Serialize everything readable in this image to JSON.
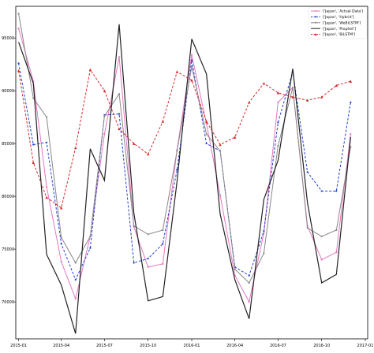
{
  "chart_data": {
    "type": "line",
    "title": "",
    "xlabel": "",
    "ylabel": "",
    "x": [
      "2015-01",
      "2015-02",
      "2015-03",
      "2015-04",
      "2015-05",
      "2015-06",
      "2015-07",
      "2015-08",
      "2015-09",
      "2015-10",
      "2015-11",
      "2015-12",
      "2016-01",
      "2016-02",
      "2016-03",
      "2016-04",
      "2016-05",
      "2016-06",
      "2016-07",
      "2016-08",
      "2016-09",
      "2016-10",
      "2016-11",
      "2016-12"
    ],
    "x_ticks": [
      "2015-01",
      "2015-04",
      "2015-07",
      "2015-10",
      "2016-01",
      "2016-04",
      "2016-07",
      "2016-10",
      "2017-01"
    ],
    "y_ticks": [
      70000,
      75000,
      80000,
      85000,
      90000,
      95000
    ],
    "xlim": [
      "2014-12-26",
      "2017-01-06"
    ],
    "ylim": [
      66500,
      98000
    ],
    "grid": false,
    "legend_position": "top-right",
    "series": [
      {
        "name": "['Japan', 'Actual Data']",
        "color": "#e377c2",
        "style": "solid",
        "marker": "dot",
        "values": [
          95900,
          90900,
          80900,
          73800,
          70300,
          76200,
          85900,
          93200,
          77100,
          73300,
          73600,
          84400,
          93400,
          86900,
          80100,
          72500,
          70000,
          76500,
          88900,
          90300,
          77200,
          74000,
          74700,
          85900
        ]
      },
      {
        "name": "['Japan', 'Hybrid']",
        "color": "#1f3fcf",
        "style": "dashed",
        "marker": "dot",
        "values": [
          92600,
          84900,
          85100,
          75500,
          72100,
          75100,
          87700,
          87800,
          73700,
          74100,
          75500,
          82500,
          92900,
          85000,
          84300,
          73300,
          72500,
          76700,
          87000,
          91800,
          82300,
          80500,
          80500,
          88900
        ]
      },
      {
        "name": "['Japan', 'WeBiLSTM']",
        "color": "#888888",
        "style": "solid",
        "marker": "dot",
        "values": [
          97300,
          89300,
          87500,
          76100,
          73700,
          76200,
          87600,
          89700,
          77200,
          76400,
          76800,
          84300,
          92300,
          85900,
          84300,
          73100,
          71800,
          74600,
          84800,
          90300,
          77000,
          76200,
          76800,
          84700
        ]
      },
      {
        "name": "['Japan', 'Prophet']",
        "color": "#222222",
        "style": "solid",
        "marker": "none",
        "values": [
          94600,
          90700,
          74500,
          71600,
          67000,
          84500,
          81500,
          96300,
          78400,
          70100,
          70500,
          81400,
          94900,
          91600,
          78300,
          72100,
          68400,
          79700,
          83400,
          92100,
          79400,
          71800,
          72600,
          85600
        ]
      },
      {
        "name": "['Japan', 'BiLSTM']",
        "color": "#d62728",
        "style": "dashed",
        "marker": "triangle",
        "values": [
          91900,
          83200,
          79900,
          78900,
          84600,
          92000,
          90000,
          86400,
          85000,
          84000,
          87100,
          91800,
          91000,
          87100,
          84900,
          85600,
          88900,
          90700,
          89800,
          89400,
          89100,
          89400,
          90500,
          90900
        ]
      }
    ]
  }
}
